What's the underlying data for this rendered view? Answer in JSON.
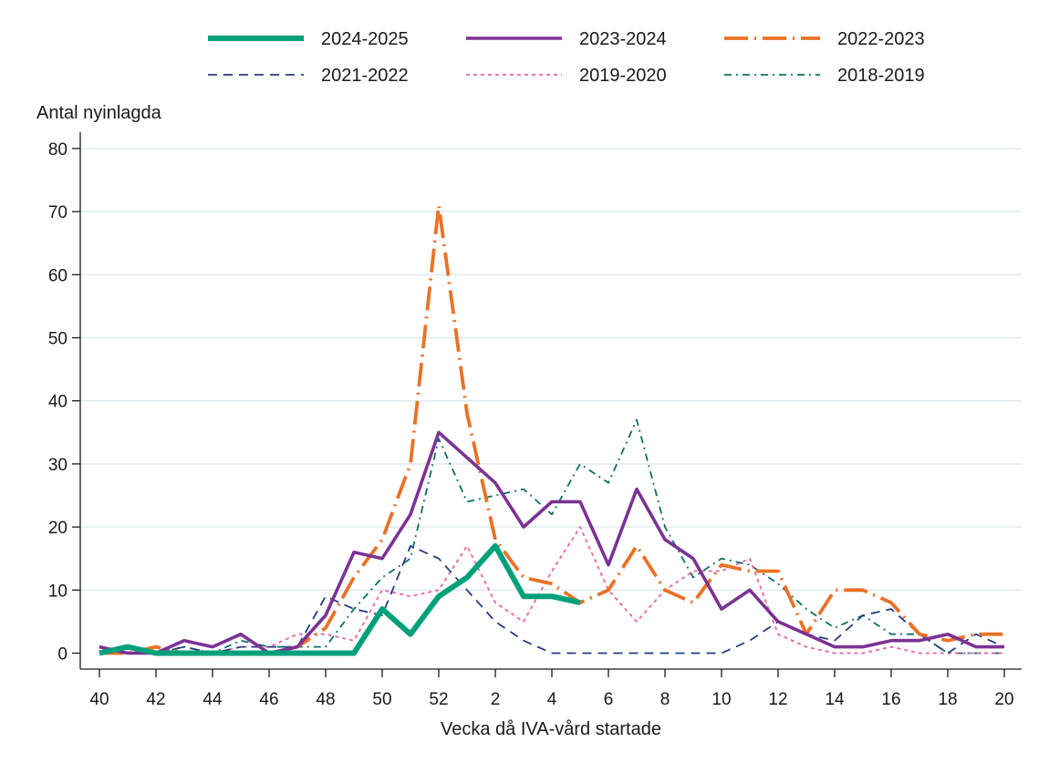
{
  "chart_data": {
    "type": "line",
    "title": "",
    "ylabel": "Antal nyinlagda",
    "xlabel": "Vecka då IVA-vård startade",
    "ylim": [
      0,
      80
    ],
    "yticks": [
      0,
      10,
      20,
      30,
      40,
      50,
      60,
      70,
      80
    ],
    "x_weeks": [
      40,
      41,
      42,
      43,
      44,
      45,
      46,
      47,
      48,
      49,
      50,
      51,
      52,
      1,
      2,
      3,
      4,
      5,
      6,
      7,
      8,
      9,
      10,
      11,
      12,
      13,
      14,
      15,
      16,
      17,
      18,
      19,
      20
    ],
    "xtick_labels": [
      "40",
      "42",
      "44",
      "46",
      "48",
      "50",
      "52",
      "2",
      "4",
      "6",
      "8",
      "10",
      "12",
      "14",
      "16",
      "18",
      "20"
    ],
    "grid": "horizontal",
    "legend_position": "top",
    "series": [
      {
        "name": "2024-2025",
        "color": "#00a07a",
        "style": "solid-thick",
        "values": [
          0,
          1,
          0,
          0,
          0,
          0,
          0,
          0,
          0,
          0,
          7,
          3,
          9,
          12,
          17,
          9,
          9,
          8
        ]
      },
      {
        "name": "2023-2024",
        "color": "#7b3294",
        "style": "solid",
        "values": [
          1,
          0,
          0,
          2,
          1,
          3,
          0,
          1,
          6,
          16,
          15,
          22,
          35,
          31,
          27,
          20,
          24,
          24,
          14,
          26,
          18,
          15,
          7,
          10,
          5,
          3,
          1,
          1,
          2,
          2,
          3,
          1,
          1
        ]
      },
      {
        "name": "2022-2023",
        "color": "#ea7125",
        "style": "longdash-dot",
        "values": [
          0,
          0,
          1,
          0,
          0,
          0,
          0,
          1,
          4,
          12,
          18,
          30,
          71,
          38,
          18,
          12,
          11,
          8,
          10,
          17,
          10,
          8,
          14,
          13,
          13,
          3,
          10,
          10,
          8,
          3,
          2,
          3,
          3
        ]
      },
      {
        "name": "2021-2022",
        "color": "#243d7f",
        "style": "dash",
        "values": [
          1,
          0,
          0,
          1,
          0,
          1,
          1,
          1,
          9,
          7,
          6,
          17,
          15,
          10,
          5,
          2,
          0,
          0,
          0,
          0,
          0,
          0,
          0,
          2,
          5,
          3,
          2,
          6,
          7,
          3,
          0,
          3,
          1
        ]
      },
      {
        "name": "2019-2020",
        "color": "#e366a5",
        "style": "dot",
        "values": [
          0,
          0,
          1,
          0,
          0,
          1,
          1,
          3,
          3,
          2,
          10,
          9,
          10,
          17,
          8,
          5,
          13,
          20,
          10,
          5,
          10,
          13,
          13,
          15,
          3,
          1,
          0,
          0,
          1,
          0,
          0,
          0,
          0
        ]
      },
      {
        "name": "2018-2019",
        "color": "#0e6e66",
        "style": "dash-dot",
        "values": [
          0,
          0,
          0,
          1,
          0,
          2,
          1,
          1,
          1,
          7,
          12,
          15,
          34,
          24,
          25,
          26,
          22,
          30,
          27,
          37,
          20,
          12,
          15,
          14,
          11,
          7,
          4,
          6,
          3,
          3,
          0,
          0,
          0
        ]
      }
    ]
  }
}
